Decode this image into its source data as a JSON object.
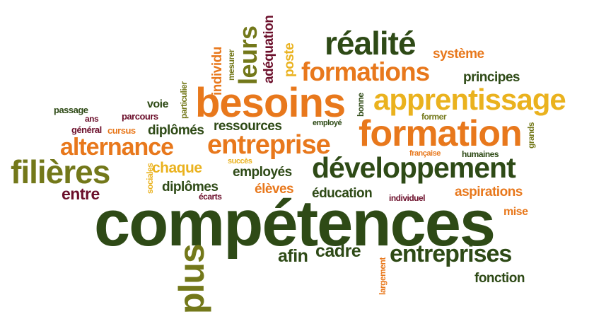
{
  "palette": {
    "dark_green": "#2e4a16",
    "olive": "#73781a",
    "orange": "#e8781c",
    "gold": "#eab21e",
    "maroon": "#6b0e2a",
    "brown": "#8a3f14"
  },
  "words": [
    {
      "text": "compétences"
    },
    {
      "text": "besoins"
    },
    {
      "text": "formation"
    },
    {
      "text": "apprentissage"
    },
    {
      "text": "développement"
    },
    {
      "text": "formations"
    },
    {
      "text": "réalité"
    },
    {
      "text": "entreprise"
    },
    {
      "text": "filières"
    },
    {
      "text": "alternance"
    },
    {
      "text": "entreprises"
    },
    {
      "text": "plus"
    },
    {
      "text": "leurs"
    },
    {
      "text": "système"
    },
    {
      "text": "principes"
    },
    {
      "text": "chaque"
    },
    {
      "text": "diplômés"
    },
    {
      "text": "ressources"
    },
    {
      "text": "employés"
    },
    {
      "text": "diplômes"
    },
    {
      "text": "élèves"
    },
    {
      "text": "éducation"
    },
    {
      "text": "aspirations"
    },
    {
      "text": "entre"
    },
    {
      "text": "cadre"
    },
    {
      "text": "afin"
    },
    {
      "text": "fonction"
    },
    {
      "text": "mise"
    },
    {
      "text": "adéquation"
    },
    {
      "text": "individu"
    },
    {
      "text": "poste"
    },
    {
      "text": "mesurer"
    },
    {
      "text": "particulier"
    },
    {
      "text": "voie"
    },
    {
      "text": "parcours"
    },
    {
      "text": "passage"
    },
    {
      "text": "ans"
    },
    {
      "text": "général"
    },
    {
      "text": "cursus"
    },
    {
      "text": "sociales"
    },
    {
      "text": "succès"
    },
    {
      "text": "écarts"
    },
    {
      "text": "employé"
    },
    {
      "text": "bonne"
    },
    {
      "text": "former"
    },
    {
      "text": "grands"
    },
    {
      "text": "française"
    },
    {
      "text": "humaines"
    },
    {
      "text": "individuel"
    },
    {
      "text": "largement"
    }
  ]
}
